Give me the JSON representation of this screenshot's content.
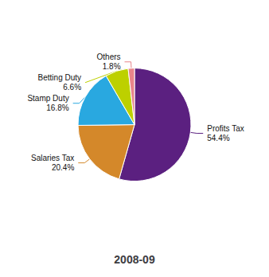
{
  "chart_data": {
    "type": "pie",
    "title": "2008-09",
    "categories": [
      "Profits Tax",
      "Salaries Tax",
      "Stamp Duty",
      "Betting Duty",
      "Others"
    ],
    "values": [
      54.4,
      20.4,
      16.8,
      6.6,
      1.8
    ],
    "value_labels": [
      "54.4%",
      "20.4%",
      "16.8%",
      "6.6%",
      "1.8%"
    ],
    "colors": [
      "#5b2080",
      "#d4882a",
      "#29a8e0",
      "#bdd000",
      "#e8858a"
    ],
    "data_labels": true
  }
}
